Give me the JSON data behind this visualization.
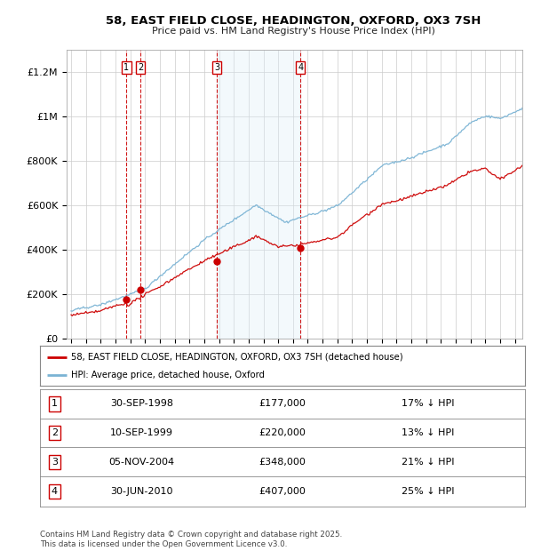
{
  "title": "58, EAST FIELD CLOSE, HEADINGTON, OXFORD, OX3 7SH",
  "subtitle": "Price paid vs. HM Land Registry's House Price Index (HPI)",
  "footer": "Contains HM Land Registry data © Crown copyright and database right 2025.\nThis data is licensed under the Open Government Licence v3.0.",
  "legend_line1": "58, EAST FIELD CLOSE, HEADINGTON, OXFORD, OX3 7SH (detached house)",
  "legend_line2": "HPI: Average price, detached house, Oxford",
  "transactions": [
    {
      "num": 1,
      "date": "30-SEP-1998",
      "price": 177000,
      "pct": "17%",
      "dir": "↓"
    },
    {
      "num": 2,
      "date": "10-SEP-1999",
      "price": 220000,
      "pct": "13%",
      "dir": "↓"
    },
    {
      "num": 3,
      "date": "05-NOV-2004",
      "price": 348000,
      "pct": "21%",
      "dir": "↓"
    },
    {
      "num": 4,
      "date": "30-JUN-2010",
      "price": 407000,
      "pct": "25%",
      "dir": "↓"
    }
  ],
  "transaction_dates_decimal": [
    1998.75,
    1999.69,
    2004.84,
    2010.5
  ],
  "hpi_color": "#7ab3d4",
  "price_color": "#cc0000",
  "highlight_color": "#ddeef8",
  "vline_color": "#cc0000",
  "grid_color": "#cccccc",
  "background_color": "#ffffff",
  "ylim": [
    0,
    1300000
  ],
  "yticks": [
    0,
    200000,
    400000,
    600000,
    800000,
    1000000,
    1200000
  ],
  "ytick_labels": [
    "£0",
    "£200K",
    "£400K",
    "£600K",
    "£800K",
    "£1M",
    "£1.2M"
  ],
  "xstart": 1995,
  "xend": 2025.5
}
